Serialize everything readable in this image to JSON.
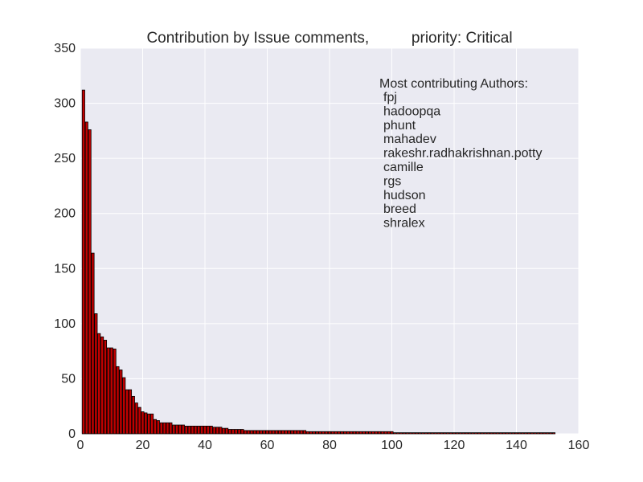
{
  "chart_data": {
    "type": "bar",
    "title": "Contribution by Issue comments,          priority: Critical",
    "xlabel": "",
    "ylabel": "",
    "xlim": [
      0,
      160
    ],
    "ylim": [
      0,
      350
    ],
    "x_ticks": [
      "0",
      "20",
      "40",
      "60",
      "80",
      "100",
      "120",
      "140",
      "160"
    ],
    "y_ticks": [
      "0",
      "50",
      "100",
      "150",
      "200",
      "250",
      "300",
      "350"
    ],
    "grid": true,
    "bar_color": "#c00000",
    "background_color": "#eaeaf2",
    "annotation": {
      "heading": "Most contributing Authors:",
      "authors": [
        "fpj",
        "hadoopqa",
        "phunt",
        "mahadev",
        "rakeshr.radhakrishnan.potty",
        "camille",
        "rgs",
        "hudson",
        "breed",
        "shralex"
      ]
    },
    "x": [
      1,
      2,
      3,
      4,
      5,
      6,
      7,
      8,
      9,
      10,
      11,
      12,
      13,
      14,
      15,
      16,
      17,
      18,
      19,
      20,
      21,
      22,
      23,
      24,
      25,
      26,
      27,
      28,
      29,
      30,
      31,
      32,
      33,
      34,
      35,
      36,
      37,
      38,
      39,
      40,
      41,
      42,
      43,
      44,
      45,
      46,
      47,
      48,
      49,
      50,
      51,
      52,
      53,
      54,
      55,
      56,
      57,
      58,
      59,
      60,
      61,
      62,
      63,
      64,
      65,
      66,
      67,
      68,
      69,
      70,
      71,
      72,
      73,
      74,
      75,
      76,
      77,
      78,
      79,
      80,
      81,
      82,
      83,
      84,
      85,
      86,
      87,
      88,
      89,
      90,
      91,
      92,
      93,
      94,
      95,
      96,
      97,
      98,
      99,
      100,
      101,
      102,
      103,
      104,
      105,
      106,
      107,
      108,
      109,
      110,
      111,
      112,
      113,
      114,
      115,
      116,
      117,
      118,
      119,
      120,
      121,
      122,
      123,
      124,
      125,
      126,
      127,
      128,
      129,
      130,
      131,
      132,
      133,
      134,
      135,
      136,
      137,
      138,
      139,
      140,
      141,
      142,
      143,
      144,
      145,
      146,
      147,
      148,
      149,
      150,
      151,
      152
    ],
    "values": [
      312,
      283,
      276,
      164,
      109,
      91,
      88,
      85,
      78,
      78,
      77,
      61,
      58,
      51,
      40,
      40,
      34,
      28,
      24,
      20,
      19,
      18,
      18,
      13,
      12,
      10,
      10,
      10,
      10,
      8,
      8,
      8,
      8,
      7,
      7,
      7,
      7,
      7,
      7,
      7,
      7,
      7,
      6,
      6,
      6,
      5,
      5,
      4,
      4,
      4,
      4,
      4,
      3,
      3,
      3,
      3,
      3,
      3,
      3,
      3,
      3,
      3,
      3,
      3,
      3,
      3,
      3,
      3,
      3,
      3,
      3,
      3,
      2,
      2,
      2,
      2,
      2,
      2,
      2,
      2,
      2,
      2,
      2,
      2,
      2,
      2,
      2,
      2,
      2,
      2,
      2,
      2,
      2,
      2,
      2,
      2,
      2,
      2,
      2,
      2,
      1,
      1,
      1,
      1,
      1,
      1,
      1,
      1,
      1,
      1,
      1,
      1,
      1,
      1,
      1,
      1,
      1,
      1,
      1,
      1,
      1,
      1,
      1,
      1,
      1,
      1,
      1,
      1,
      1,
      1,
      1,
      1,
      1,
      1,
      1,
      1,
      1,
      1,
      1,
      1,
      1,
      1,
      1,
      1,
      1,
      1,
      1,
      1,
      1,
      1,
      1,
      1
    ]
  }
}
